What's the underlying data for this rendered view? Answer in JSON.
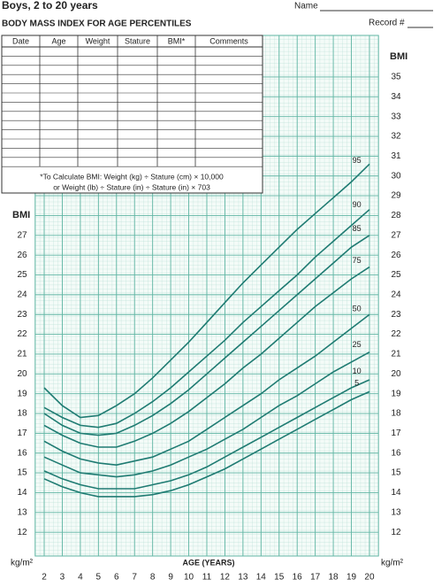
{
  "chart_data": {
    "type": "line",
    "title": "Boys, 2 to 20 years",
    "subtitle": "BODY MASS INDEX FOR AGE PERCENTILES",
    "form_fields": [
      "Name",
      "Record #"
    ],
    "table_columns": [
      "Date",
      "Age",
      "Weight",
      "Stature",
      "BMI*",
      "Comments"
    ],
    "footnote": [
      "*To Calculate BMI: Weight (kg) ÷ Stature (cm) × 10,000",
      "or Weight (lb) ÷ Stature (in) ÷ Stature (in) × 703"
    ],
    "ylabel": "BMI",
    "unit_label": "kg/m²",
    "xlabel": "AGE (YEARS)",
    "x": [
      2,
      3,
      4,
      5,
      6,
      7,
      8,
      9,
      10,
      11,
      12,
      13,
      14,
      15,
      16,
      17,
      18,
      19,
      20
    ],
    "xlim": [
      1.5,
      20.5
    ],
    "xticks": [
      2,
      3,
      4,
      5,
      6,
      7,
      8,
      9,
      10,
      11,
      12,
      13,
      14,
      15,
      16,
      17,
      18,
      19,
      20
    ],
    "ylim": [
      10.8,
      37.1
    ],
    "yticks": [
      12,
      13,
      14,
      15,
      16,
      17,
      18,
      19,
      20,
      21,
      22,
      23,
      24,
      25,
      26,
      27,
      28,
      29,
      30,
      31,
      32,
      33,
      34,
      35
    ],
    "left_yticks": [
      12,
      13,
      14,
      15,
      16,
      17,
      18,
      19,
      20,
      21,
      22,
      23,
      24,
      25,
      26,
      27
    ],
    "grid": true,
    "series": [
      {
        "name": "95",
        "color": "#1f7b72",
        "values": [
          19.3,
          18.4,
          17.8,
          17.9,
          18.4,
          19.0,
          19.8,
          20.7,
          21.6,
          22.6,
          23.6,
          24.6,
          25.5,
          26.4,
          27.3,
          28.1,
          28.9,
          29.7,
          30.6
        ]
      },
      {
        "name": "90",
        "color": "#1f7b72",
        "values": [
          18.3,
          17.8,
          17.4,
          17.3,
          17.5,
          18.0,
          18.6,
          19.3,
          20.1,
          20.9,
          21.7,
          22.6,
          23.4,
          24.2,
          25.0,
          25.9,
          26.7,
          27.5,
          28.3
        ]
      },
      {
        "name": "85",
        "color": "#1f7b72",
        "values": [
          18.0,
          17.4,
          17.0,
          16.9,
          17.0,
          17.4,
          17.9,
          18.5,
          19.2,
          20.0,
          20.8,
          21.6,
          22.4,
          23.2,
          24.0,
          24.8,
          25.6,
          26.4,
          27.0
        ]
      },
      {
        "name": "75",
        "color": "#1f7b72",
        "values": [
          17.4,
          16.9,
          16.5,
          16.3,
          16.3,
          16.6,
          17.0,
          17.5,
          18.1,
          18.8,
          19.5,
          20.3,
          21.0,
          21.8,
          22.6,
          23.4,
          24.1,
          24.8,
          25.4
        ]
      },
      {
        "name": "50",
        "color": "#1f7b72",
        "values": [
          16.6,
          16.1,
          15.7,
          15.5,
          15.4,
          15.6,
          15.8,
          16.2,
          16.6,
          17.2,
          17.8,
          18.4,
          19.0,
          19.7,
          20.3,
          20.9,
          21.6,
          22.3,
          23.0
        ]
      },
      {
        "name": "25",
        "color": "#1f7b72",
        "values": [
          15.8,
          15.4,
          15.0,
          14.9,
          14.8,
          14.9,
          15.1,
          15.4,
          15.8,
          16.2,
          16.7,
          17.2,
          17.8,
          18.4,
          18.9,
          19.5,
          20.1,
          20.6,
          21.1
        ]
      },
      {
        "name": "10",
        "color": "#1f7b72",
        "values": [
          15.1,
          14.7,
          14.4,
          14.2,
          14.2,
          14.2,
          14.4,
          14.6,
          14.9,
          15.3,
          15.8,
          16.3,
          16.8,
          17.3,
          17.8,
          18.3,
          18.8,
          19.3,
          19.7
        ]
      },
      {
        "name": "5",
        "color": "#1f7b72",
        "values": [
          14.7,
          14.3,
          14.0,
          13.8,
          13.8,
          13.8,
          13.9,
          14.1,
          14.4,
          14.8,
          15.2,
          15.7,
          16.2,
          16.7,
          17.2,
          17.7,
          18.2,
          18.7,
          19.1
        ]
      }
    ]
  }
}
